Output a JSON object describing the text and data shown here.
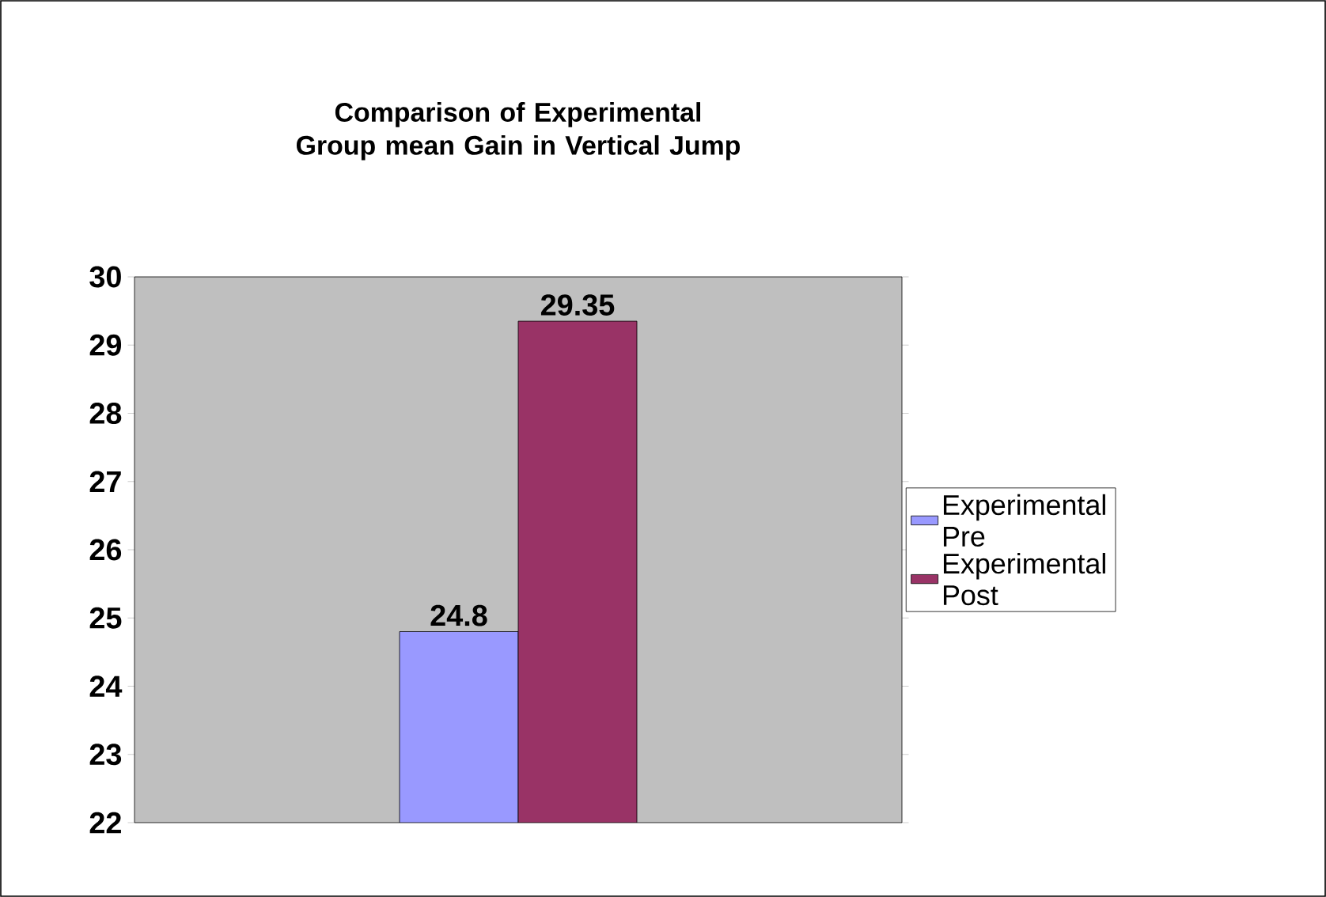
{
  "chart_data": {
    "type": "bar",
    "title": "Comparison of Experimental Group mean Gain in Vertical Jump",
    "categories": [
      null
    ],
    "series": [
      {
        "name": "Experimental Pre",
        "color": "#9999ff",
        "values": [
          24.8
        ]
      },
      {
        "name": "Experimental Post",
        "color": "#993366",
        "values": [
          29.35
        ]
      }
    ],
    "ylim": [
      22,
      30
    ],
    "yticks": [
      22,
      23,
      24,
      25,
      26,
      27,
      28,
      29,
      30
    ],
    "data_labels": true,
    "legend": "right"
  }
}
